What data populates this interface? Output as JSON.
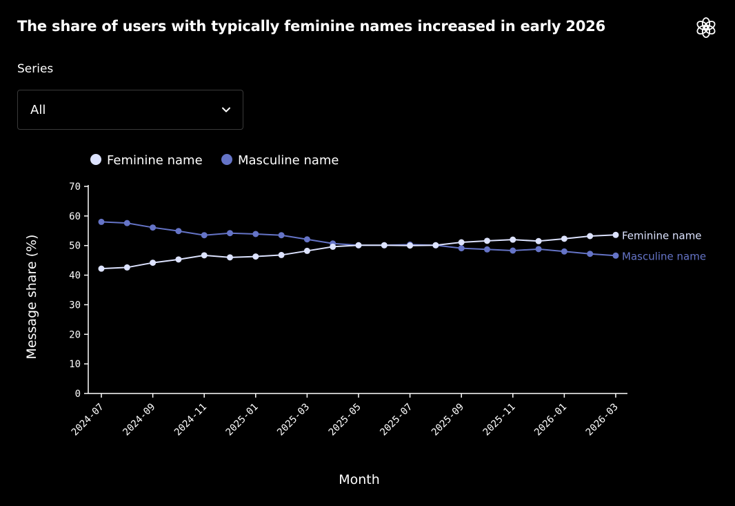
{
  "title": "The share of users with typically feminine names increased in early 2026",
  "logo_icon": "openai-logo-icon",
  "series_selector": {
    "label": "Series",
    "selected": "All",
    "icon": "chevron-down-icon"
  },
  "colors": {
    "background": "#000000",
    "feminine": "#dde3ff",
    "masculine": "#6574c7",
    "axis": "#ffffff"
  },
  "chart_data": {
    "type": "line",
    "xlabel": "Month",
    "ylabel": "Message share (%)",
    "ylim": [
      0,
      70
    ],
    "yticks": [
      0,
      10,
      20,
      30,
      40,
      50,
      60,
      70
    ],
    "x": [
      "2024-07",
      "2024-08",
      "2024-09",
      "2024-10",
      "2024-11",
      "2024-12",
      "2025-01",
      "2025-02",
      "2025-03",
      "2025-04",
      "2025-05",
      "2025-06",
      "2025-07",
      "2025-08",
      "2025-09",
      "2025-10",
      "2025-11",
      "2025-12",
      "2026-01",
      "2026-02",
      "2026-03"
    ],
    "xtick_labels": [
      "2024-07",
      "2024-09",
      "2024-11",
      "2025-01",
      "2025-03",
      "2025-05",
      "2025-07",
      "2025-09",
      "2025-11",
      "2026-01",
      "2026-03"
    ],
    "legend_position": "top-left",
    "series": [
      {
        "name": "Feminine name",
        "color": "#dde3ff",
        "values": [
          42.2,
          42.6,
          44.2,
          45.3,
          46.7,
          46.0,
          46.3,
          46.8,
          48.2,
          49.6,
          50.1,
          50.1,
          50.0,
          50.1,
          51.1,
          51.6,
          52.0,
          51.5,
          52.3,
          53.2,
          53.6
        ]
      },
      {
        "name": "Masculine name",
        "color": "#6574c7",
        "values": [
          58.0,
          57.6,
          56.1,
          54.9,
          53.5,
          54.2,
          53.9,
          53.5,
          52.1,
          50.7,
          50.1,
          50.1,
          50.3,
          50.1,
          49.1,
          48.7,
          48.3,
          48.8,
          48.0,
          47.2,
          46.6
        ]
      }
    ]
  }
}
